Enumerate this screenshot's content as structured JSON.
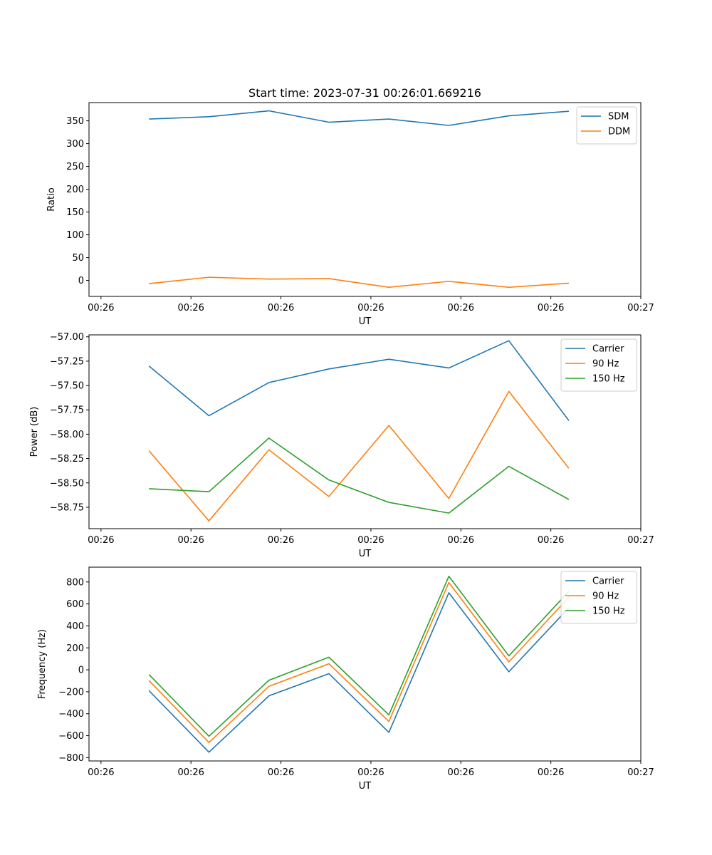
{
  "chart_data": [
    {
      "type": "line",
      "title": "Start time: 2023-07-31 00:26:01.669216",
      "xlabel": "UT",
      "ylabel": "Ratio",
      "ylim": [
        -35,
        390
      ],
      "yticks": [
        0,
        50,
        100,
        150,
        200,
        250,
        300,
        350
      ],
      "yticklabels": [
        "0",
        "50",
        "100",
        "150",
        "200",
        "250",
        "300",
        "350"
      ],
      "x": [
        1,
        2,
        3,
        4,
        5,
        6,
        7,
        8
      ],
      "xlim": [
        0,
        9.2
      ],
      "xticks": [
        0.2,
        1.7,
        3.2,
        4.7,
        6.2,
        7.7,
        9.2
      ],
      "xticklabels": [
        "00:26",
        "00:26",
        "00:26",
        "00:26",
        "00:26",
        "00:26",
        "00:27"
      ],
      "legend_position": "upper-right",
      "series": [
        {
          "name": "SDM",
          "color": "#1f77b4",
          "values": [
            354,
            359,
            372,
            347,
            354,
            340,
            361,
            371
          ]
        },
        {
          "name": "DDM",
          "color": "#ff7f0e",
          "values": [
            -7,
            7,
            3,
            4,
            -15,
            -2,
            -15,
            -6
          ]
        }
      ]
    },
    {
      "type": "line",
      "title": "",
      "xlabel": "UT",
      "ylabel": "Power (dB)",
      "ylim": [
        -58.97,
        -56.98
      ],
      "yticks": [
        -58.75,
        -58.5,
        -58.25,
        -58.0,
        -57.75,
        -57.5,
        -57.25,
        -57.0
      ],
      "yticklabels": [
        "−58.75",
        "−58.50",
        "−58.25",
        "−58.00",
        "−57.75",
        "−57.50",
        "−57.25",
        "−57.00"
      ],
      "x": [
        1,
        2,
        3,
        4,
        5,
        6,
        7,
        8
      ],
      "xlim": [
        0,
        9.2
      ],
      "xticks": [
        0.2,
        1.7,
        3.2,
        4.7,
        6.2,
        7.7,
        9.2
      ],
      "xticklabels": [
        "00:26",
        "00:26",
        "00:26",
        "00:26",
        "00:26",
        "00:26",
        "00:27"
      ],
      "legend_position": "upper-right",
      "series": [
        {
          "name": "Carrier",
          "color": "#1f77b4",
          "values": [
            -57.3,
            -57.81,
            -57.47,
            -57.33,
            -57.23,
            -57.32,
            -57.04,
            -57.86
          ]
        },
        {
          "name": "90 Hz",
          "color": "#ff7f0e",
          "values": [
            -58.17,
            -58.89,
            -58.16,
            -58.64,
            -57.91,
            -58.66,
            -57.56,
            -58.35
          ]
        },
        {
          "name": "150 Hz",
          "color": "#2ca02c",
          "values": [
            -58.56,
            -58.59,
            -58.04,
            -58.47,
            -58.7,
            -58.81,
            -58.33,
            -58.67
          ]
        }
      ]
    },
    {
      "type": "line",
      "title": "",
      "xlabel": "UT",
      "ylabel": "Frequency (Hz)",
      "ylim": [
        -830,
        935
      ],
      "yticks": [
        -800,
        -600,
        -400,
        -200,
        0,
        200,
        400,
        600,
        800
      ],
      "yticklabels": [
        "−800",
        "−600",
        "−400",
        "−200",
        "0",
        "200",
        "400",
        "600",
        "800"
      ],
      "x": [
        1,
        2,
        3,
        4,
        5,
        6,
        7,
        8
      ],
      "xlim": [
        0,
        9.2
      ],
      "xticks": [
        0.2,
        1.7,
        3.2,
        4.7,
        6.2,
        7.7,
        9.2
      ],
      "xticklabels": [
        "00:26",
        "00:26",
        "00:26",
        "00:26",
        "00:26",
        "00:26",
        "00:27"
      ],
      "legend_position": "upper-right",
      "series": [
        {
          "name": "Carrier",
          "color": "#1f77b4",
          "values": [
            -190,
            -750,
            -237,
            -35,
            -570,
            702,
            -18,
            565
          ]
        },
        {
          "name": "90 Hz",
          "color": "#ff7f0e",
          "values": [
            -97,
            -662,
            -150,
            55,
            -470,
            795,
            72,
            660
          ]
        },
        {
          "name": "150 Hz",
          "color": "#2ca02c",
          "values": [
            -43,
            -605,
            -95,
            115,
            -410,
            852,
            127,
            714
          ]
        }
      ]
    }
  ]
}
